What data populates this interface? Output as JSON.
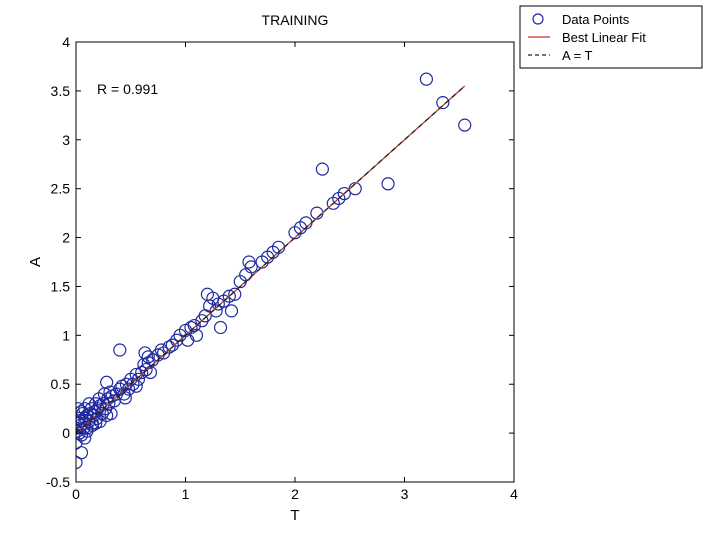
{
  "chart_data": {
    "type": "scatter",
    "title": "TRAINING",
    "xlabel": "T",
    "ylabel": "A",
    "xlim": [
      0,
      4
    ],
    "ylim": [
      -0.5,
      4
    ],
    "xticks": [
      0,
      1,
      2,
      3,
      4
    ],
    "yticks": [
      -0.5,
      0,
      0.5,
      1,
      1.5,
      2,
      2.5,
      3,
      3.5,
      4
    ],
    "xtick_labels": [
      "0",
      "1",
      "2",
      "3",
      "4"
    ],
    "ytick_labels": [
      "-0.5",
      "0",
      "0.5",
      "1",
      "1.5",
      "2",
      "2.5",
      "3",
      "3.5",
      "4"
    ],
    "grid": false,
    "annotation": "R = 0.991",
    "legend_position": "outside top-right",
    "legend": [
      {
        "label": "Data Points",
        "marker": "circle",
        "color": "#1f2a9e"
      },
      {
        "label": "Best Linear Fit",
        "line": "solid",
        "color": "#c0392b"
      },
      {
        "label": "A = T",
        "line": "dashed",
        "color": "#222222"
      }
    ],
    "series": [
      {
        "name": "Data Points",
        "color": "#1f2a9e",
        "marker": "open-circle",
        "x": [
          0.0,
          0.0,
          0.01,
          0.02,
          0.03,
          0.03,
          0.04,
          0.05,
          0.05,
          0.06,
          0.07,
          0.08,
          0.08,
          0.09,
          0.1,
          0.1,
          0.12,
          0.13,
          0.14,
          0.15,
          0.16,
          0.17,
          0.18,
          0.19,
          0.2,
          0.21,
          0.22,
          0.24,
          0.25,
          0.26,
          0.27,
          0.28,
          0.29,
          0.3,
          0.31,
          0.33,
          0.35,
          0.37,
          0.4,
          0.42,
          0.44,
          0.46,
          0.48,
          0.5,
          0.52,
          0.55,
          0.57,
          0.6,
          0.62,
          0.64,
          0.66,
          0.7,
          0.75,
          0.8,
          0.85,
          0.88,
          0.92,
          0.95,
          1.0,
          1.02,
          1.05,
          1.08,
          1.1,
          1.15,
          1.18,
          1.22,
          1.25,
          1.28,
          1.3,
          1.35,
          1.4,
          1.45,
          1.5,
          1.55,
          1.6,
          1.7,
          1.75,
          1.8,
          1.85,
          2.0,
          2.05,
          2.1,
          2.2,
          2.25,
          2.35,
          2.4,
          2.45,
          2.55,
          2.85,
          3.2,
          3.35,
          3.55,
          0.02,
          0.05,
          0.08,
          0.12,
          0.18,
          0.28,
          0.4,
          0.63,
          0.66,
          1.2,
          1.32,
          1.42,
          1.58,
          0.1,
          0.15,
          0.22,
          0.32,
          0.45,
          0.55,
          0.68,
          0.78,
          0.05,
          0.0
        ],
        "y": [
          -0.3,
          0.05,
          0.02,
          0.1,
          0.0,
          0.15,
          0.08,
          -0.02,
          0.12,
          0.2,
          0.05,
          0.1,
          0.25,
          0.15,
          0.05,
          0.18,
          0.12,
          0.2,
          0.25,
          0.1,
          0.18,
          0.22,
          0.3,
          0.15,
          0.25,
          0.35,
          0.28,
          0.2,
          0.3,
          0.4,
          0.25,
          0.52,
          0.35,
          0.3,
          0.42,
          0.38,
          0.33,
          0.4,
          0.45,
          0.48,
          0.4,
          0.5,
          0.45,
          0.55,
          0.5,
          0.6,
          0.55,
          0.62,
          0.7,
          0.65,
          0.72,
          0.75,
          0.8,
          0.82,
          0.88,
          0.9,
          0.95,
          1.0,
          1.05,
          0.95,
          1.08,
          1.1,
          1.0,
          1.15,
          1.2,
          1.3,
          1.38,
          1.25,
          1.32,
          1.35,
          1.4,
          1.42,
          1.55,
          1.62,
          1.7,
          1.75,
          1.8,
          1.85,
          1.9,
          2.05,
          2.1,
          2.15,
          2.25,
          2.7,
          2.35,
          2.4,
          2.45,
          2.5,
          2.55,
          3.62,
          3.38,
          3.15,
          0.25,
          0.22,
          -0.05,
          0.3,
          0.1,
          0.18,
          0.85,
          0.82,
          0.78,
          1.42,
          1.08,
          1.25,
          1.75,
          0.02,
          0.08,
          0.12,
          0.2,
          0.36,
          0.48,
          0.62,
          0.85,
          -0.2,
          -0.1
        ]
      }
    ],
    "lines": [
      {
        "name": "Best Linear Fit",
        "color": "#c0392b",
        "style": "solid",
        "x": [
          0,
          3.55
        ],
        "y": [
          0.0,
          3.55
        ]
      },
      {
        "name": "A = T",
        "color": "#222222",
        "style": "dashed",
        "x": [
          0,
          3.55
        ],
        "y": [
          0.0,
          3.55
        ]
      }
    ]
  }
}
